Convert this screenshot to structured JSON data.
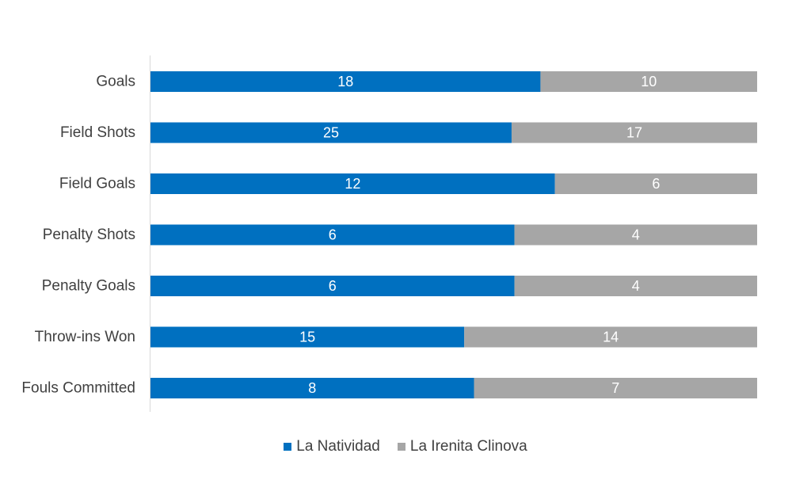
{
  "chart_data": {
    "type": "bar",
    "orientation": "horizontal",
    "stacking": "percent",
    "categories": [
      "Goals",
      "Field Shots",
      "Field Goals",
      "Penalty Shots",
      "Penalty Goals",
      "Throw-ins Won",
      "Fouls Committed"
    ],
    "series": [
      {
        "name": "La Natividad",
        "color": "#0070C0",
        "values": [
          18,
          25,
          12,
          6,
          6,
          15,
          8
        ]
      },
      {
        "name": "La Irenita Clinova",
        "color": "#A6A6A6",
        "values": [
          10,
          17,
          6,
          4,
          4,
          14,
          7
        ]
      }
    ],
    "title": "",
    "xlabel": "",
    "ylabel": "",
    "legend": "bottom",
    "grid": false
  }
}
